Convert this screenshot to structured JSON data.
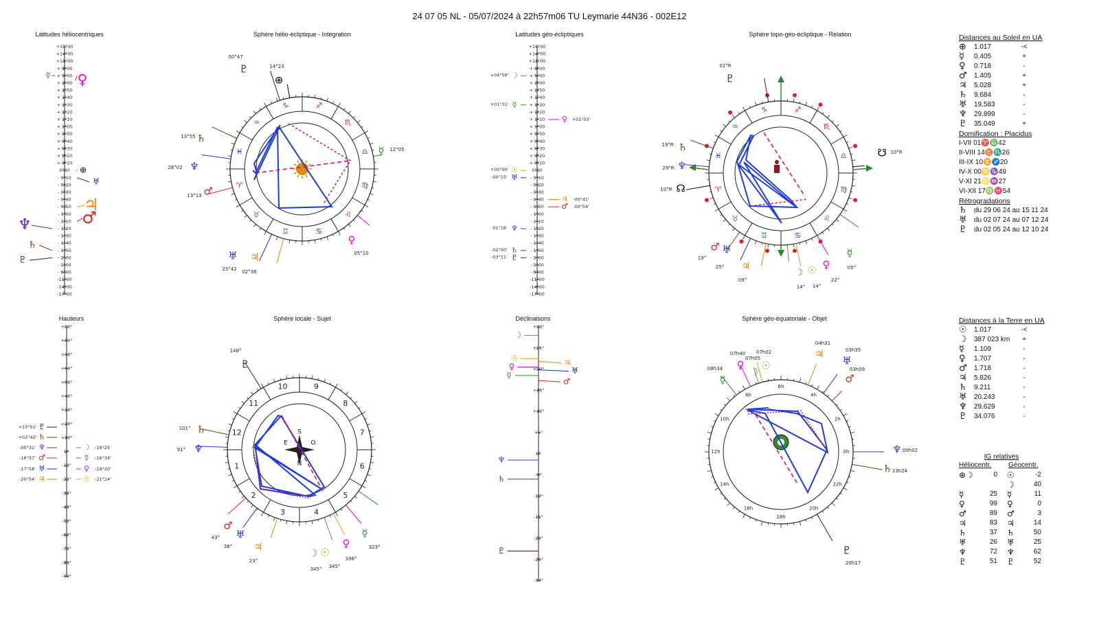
{
  "header": {
    "title": "24 07 05 NL   -  05/07/2024 à 22h57m06 TU  Leymarie  44N36 - 002E12"
  },
  "panels": {
    "p1": "Latitudes héliocentriques",
    "p2": "Sphère hélio-écliptique - Intégration",
    "p3": "Latitudes géo-écliptiques",
    "p4": "Sphère topo-géo-écliptique - Relation",
    "p5": "Hauteurs",
    "p6": "Sphère locale - Sujet",
    "p7": "Déclinaisons",
    "p8": "Sphère géo-équatoriale - Objet"
  },
  "colors": {
    "sun": "#d4a017",
    "moon": "#7a7a7a",
    "mercury": "#2e8b2e",
    "venus": "#ee00ee",
    "mars": "#e02020",
    "jupiter": "#ff7f00",
    "saturn": "#7a3b10",
    "uranus": "#1a2bd6",
    "neptune": "#6020c0",
    "pluto": "#4b0d4b",
    "earth": "#000000",
    "aspect": "#1f3bdd",
    "dashed": "#e0105e",
    "arrow": "#2a8a2a"
  },
  "scales": {
    "helio_lat": [
      "+17°00",
      "+14°00",
      "+11°00",
      "+ 8°00",
      "+ 5°00",
      "+ 2°00",
      "+ 1°50",
      "+ 1°40",
      "+ 1°30",
      "+ 1°20",
      "+ 1°10",
      "+ 1°00",
      "+ 0°50",
      "+ 0°40",
      "+ 0°30",
      "+ 0°20",
      "+ 0°10",
      "0°00",
      "- 0°10",
      "- 0°20",
      "- 0°30",
      "- 0°40",
      "- 0°50",
      "- 1°00",
      "- 1°10",
      "- 1°20",
      "- 1°30",
      "- 1°40",
      "- 1°50",
      "- 2°00",
      "- 5°00",
      "- 8°00",
      "-11°00",
      "-14°00",
      "-17°00"
    ],
    "geo_lat": [
      "+17°00",
      "+14°00",
      "+11°00",
      "+ 8°00",
      "+ 5°00",
      "+ 2°00",
      "+ 1°50",
      "+ 1°40",
      "+ 1°30",
      "+ 1°20",
      "+ 1°10",
      "+ 1°00",
      "+ 0°50",
      "+ 0°40",
      "+ 0°30",
      "+ 0°20",
      "+ 0°10",
      "0°00",
      "- 0°10",
      "- 0°20",
      "- 0°30",
      "- 0°40",
      "- 0°50",
      "- 1°00",
      "- 1°10",
      "- 1°20",
      "- 1°30",
      "- 1°40",
      "- 1°50",
      "- 2°00",
      "- 5°00",
      "- 8°00",
      "-11°00",
      "-14°00",
      "-17°00"
    ],
    "heights": [
      "+90°",
      "+80°",
      "+70°",
      "+60°",
      "+50°",
      "+40°",
      "+30°",
      "+20°",
      "+10°",
      "0°",
      "-10°",
      "-20°",
      "-30°",
      "-40°",
      "-50°",
      "-60°",
      "-70°",
      "-80°",
      "-90°"
    ],
    "declinations": [
      "+30°",
      "+25°",
      "+20°",
      "+15°",
      "+10°",
      "+5°",
      "0°",
      "-5°",
      "-10°",
      "-15°",
      "-20°",
      "-25°",
      "-30°"
    ]
  },
  "helio_lat_points": [
    {
      "glyph": "☿",
      "color": "#2e8b2e",
      "tick": 4,
      "label": ""
    },
    {
      "glyph": "♀",
      "color": "#ee00ee",
      "tick": 4,
      "label": ""
    },
    {
      "glyph": "⊕",
      "color": "#000000",
      "tick": 17,
      "label": ""
    },
    {
      "glyph": "♅",
      "color": "#1a2bd6",
      "tick": 18,
      "label": ""
    },
    {
      "glyph": "♃",
      "color": "#ff7f00",
      "tick": 22,
      "label": ""
    },
    {
      "glyph": "♂",
      "color": "#e02020",
      "tick": 24,
      "label": ""
    },
    {
      "glyph": "♆",
      "color": "#6020c0",
      "tick": 25,
      "label": ""
    },
    {
      "glyph": "♄",
      "color": "#7a3b10",
      "tick": 28,
      "label": ""
    },
    {
      "glyph": "♇",
      "color": "#4b0d4b",
      "tick": 29,
      "label": ""
    }
  ],
  "geo_lat_points": [
    {
      "glyph": "☽",
      "color": "#7a7a7a",
      "side": "left",
      "label": "+04°59'",
      "tick": 4
    },
    {
      "glyph": "☿",
      "color": "#2e8b2e",
      "side": "left",
      "label": "+01°31'",
      "tick": 8
    },
    {
      "glyph": "♀",
      "color": "#ee00ee",
      "side": "right",
      "label": "+01°03'",
      "tick": 10
    },
    {
      "glyph": "☉",
      "color": "#d4a017",
      "side": "left",
      "label": "+00°00'",
      "tick": 17
    },
    {
      "glyph": "♅",
      "color": "#1a2bd6",
      "side": "left",
      "label": "-00°15'",
      "tick": 18
    },
    {
      "glyph": "♃",
      "color": "#ff7f00",
      "side": "right",
      "label": "-00°41'",
      "tick": 21
    },
    {
      "glyph": "♂",
      "color": "#e02020",
      "side": "right",
      "label": "-00°54'",
      "tick": 22
    },
    {
      "glyph": "♆",
      "color": "#6020c0",
      "side": "left",
      "label": "-01°16'",
      "tick": 25
    },
    {
      "glyph": "♄",
      "color": "#7a3b10",
      "side": "left",
      "label": "-02°00'",
      "tick": 28
    },
    {
      "glyph": "♇",
      "color": "#4b0d4b",
      "side": "left",
      "label": "-03°11'",
      "tick": 29
    }
  ],
  "height_points": [
    {
      "glyph": "♇",
      "color": "#4b0d4b",
      "side": "left",
      "label": "+15°51'"
    },
    {
      "glyph": "♄",
      "color": "#7a3b10",
      "side": "left",
      "label": "+02°42'"
    },
    {
      "glyph": "♆",
      "color": "#6020c0",
      "side": "left",
      "label": "-00°31'"
    },
    {
      "glyph": "♂",
      "color": "#e02020",
      "side": "left",
      "label": "-16°57'"
    },
    {
      "glyph": "♅",
      "color": "#1a2bd6",
      "side": "left",
      "label": "-17°58'"
    },
    {
      "glyph": "♃",
      "color": "#ff7f00",
      "side": "left",
      "label": "-20°54'"
    },
    {
      "glyph": "☽",
      "color": "#7a7a7a",
      "side": "right",
      "label": "-16°25'"
    },
    {
      "glyph": "☿",
      "color": "#2e8b2e",
      "side": "right",
      "label": "-16°34'"
    },
    {
      "glyph": "♀",
      "color": "#ee00ee",
      "side": "right",
      "label": "-19°20'"
    },
    {
      "glyph": "☉",
      "color": "#d4a017",
      "side": "right",
      "label": "-21°24'"
    }
  ],
  "zodiac": [
    "♈",
    "♉",
    "♊",
    "♋",
    "♌",
    "♍",
    "♎",
    "♏",
    "♐",
    "♑",
    "♒",
    "♓"
  ],
  "houses": [
    "1",
    "2",
    "3",
    "4",
    "5",
    "6",
    "7",
    "8",
    "9",
    "10",
    "11",
    "12"
  ],
  "hours": [
    "0h",
    "2h",
    "4h",
    "6h",
    "8h",
    "10h",
    "12h",
    "14h",
    "16h",
    "18h",
    "20h",
    "22h"
  ],
  "helio_wheel_labels": [
    {
      "glyph": "♇",
      "color": "#4b0d4b",
      "text": "00°47"
    },
    {
      "glyph": "⊕",
      "color": "#000000",
      "text": "14°23"
    },
    {
      "glyph": "♄",
      "color": "#7a3b10",
      "text": "13°55"
    },
    {
      "glyph": "♆",
      "color": "#6020c0",
      "text": "28°02"
    },
    {
      "glyph": "♂",
      "color": "#e02020",
      "text": "13°13"
    },
    {
      "glyph": "☿",
      "color": "#2e8b2e",
      "text": "12°05"
    },
    {
      "glyph": "♅",
      "color": "#1a2bd6",
      "text": "23°42"
    },
    {
      "glyph": "♃",
      "color": "#ff7f00",
      "text": "02°36"
    },
    {
      "glyph": "♀",
      "color": "#ee00ee",
      "text": "05°10"
    }
  ],
  "topo_wheel_labels": [
    {
      "glyph": "♇",
      "color": "#4b0d4b",
      "text": "01°R"
    },
    {
      "glyph": "♄",
      "color": "#7a3b10",
      "text": "19°R"
    },
    {
      "glyph": "♆",
      "color": "#6020c0",
      "text": "29°R"
    },
    {
      "glyph": "☊",
      "color": "#000000",
      "text": "10°R"
    },
    {
      "glyph": "☋",
      "color": "#000000",
      "text": "10°R"
    },
    {
      "glyph": "♂",
      "color": "#e02020",
      "text": "19°"
    },
    {
      "glyph": "♅",
      "color": "#1a2bd6",
      "text": "25°"
    },
    {
      "glyph": "♃",
      "color": "#ff7f00",
      "text": "09°"
    },
    {
      "glyph": "☽",
      "color": "#7a7a7a",
      "text": "14°"
    },
    {
      "glyph": "☉",
      "color": "#d4a017",
      "text": "14°"
    },
    {
      "glyph": "♀",
      "color": "#ee00ee",
      "text": "22°"
    },
    {
      "glyph": "☿",
      "color": "#2e8b2e",
      "text": "05°"
    }
  ],
  "local_wheel_labels": [
    {
      "glyph": "♇",
      "color": "#4b0d4b",
      "text": "148°"
    },
    {
      "glyph": "♄",
      "color": "#7a3b10",
      "text": "101°"
    },
    {
      "glyph": "♆",
      "color": "#6020c0",
      "text": "91°"
    },
    {
      "glyph": "♂",
      "color": "#e02020",
      "text": "43°"
    },
    {
      "glyph": "♅",
      "color": "#1a2bd6",
      "text": "36°"
    },
    {
      "glyph": "♃",
      "color": "#ff7f00",
      "text": "23°"
    },
    {
      "glyph": "☽",
      "color": "#7a7a7a",
      "text": "345°"
    },
    {
      "glyph": "☉",
      "color": "#d4a017",
      "text": "345°"
    },
    {
      "glyph": "♀",
      "color": "#ee00ee",
      "text": "336°"
    },
    {
      "glyph": "☿",
      "color": "#2e8b2e",
      "text": "323°"
    }
  ],
  "local_compass": {
    "s": "S",
    "n": "N",
    "e": "E",
    "o": "O"
  },
  "equat_wheel_labels": [
    {
      "glyph": "♃",
      "color": "#ff7f00",
      "text": "04h31"
    },
    {
      "glyph": "♅",
      "color": "#1a2bd6",
      "text": "03h35"
    },
    {
      "glyph": "♂",
      "color": "#e02020",
      "text": "03h09"
    },
    {
      "glyph": "☉",
      "color": "#d4a017",
      "text": "07h02"
    },
    {
      "glyph": "☽",
      "color": "#7a7a7a",
      "text": "07h05"
    },
    {
      "glyph": "♀",
      "color": "#ee00ee",
      "text": "07h40"
    },
    {
      "glyph": "☿",
      "color": "#2e8b2e",
      "text": "08h34"
    },
    {
      "glyph": "♆",
      "color": "#6020c0",
      "text": "00h02"
    },
    {
      "glyph": "♄",
      "color": "#7a3b10",
      "text": "23h24"
    },
    {
      "glyph": "♇",
      "color": "#4b0d4b",
      "text": "20h17"
    }
  ],
  "decl_points": [
    {
      "glyph": "☽",
      "color": "#7a7a7a",
      "side": "left",
      "deg": 28
    },
    {
      "glyph": "☉",
      "color": "#d4a017",
      "side": "left",
      "deg": 22.5
    },
    {
      "glyph": "♀",
      "color": "#ee00ee",
      "side": "left",
      "deg": 20.5
    },
    {
      "glyph": "☿",
      "color": "#2e8b2e",
      "side": "left",
      "deg": 18.5
    },
    {
      "glyph": "♃",
      "color": "#ff7f00",
      "side": "right",
      "deg": 21.5
    },
    {
      "glyph": "♅",
      "color": "#1a2bd6",
      "side": "right",
      "deg": 19.5
    },
    {
      "glyph": "♂",
      "color": "#e02020",
      "side": "right",
      "deg": 17
    },
    {
      "glyph": "♆",
      "color": "#6020c0",
      "side": "left",
      "deg": -1.5
    },
    {
      "glyph": "♄",
      "color": "#7a3b10",
      "side": "left",
      "deg": -6
    },
    {
      "glyph": "♇",
      "color": "#4b0d4b",
      "side": "left",
      "deg": -23
    }
  ],
  "sun_distances": {
    "title": "Distances au Soleil en UA",
    "rows": [
      {
        "glyph": "⊕",
        "value": "1.017",
        "sign": "-<"
      },
      {
        "glyph": "☿",
        "value": "0.405",
        "sign": "+"
      },
      {
        "glyph": "♀",
        "value": "0.718",
        "sign": "-"
      },
      {
        "glyph": "♂",
        "value": "1.405",
        "sign": "+"
      },
      {
        "glyph": "♃",
        "value": "5.028",
        "sign": "+"
      },
      {
        "glyph": "♄",
        "value": "9.684",
        "sign": "-"
      },
      {
        "glyph": "♅",
        "value": "19.583",
        "sign": "-"
      },
      {
        "glyph": "♆",
        "value": "29.899",
        "sign": "-"
      },
      {
        "glyph": "♇",
        "value": "35.049",
        "sign": "+"
      }
    ]
  },
  "domification": {
    "title": "Domification : Placidus",
    "rows": [
      "I-VII   01♈♎42",
      "II-VIII   14♉♏26",
      "III-IX   10♊♐20",
      "IV-X   00♋♑49",
      "V-XI   21♌♒27",
      "VI-XII   17♍♓54"
    ]
  },
  "retrogradations": {
    "title": "Rétrogradations",
    "rows": [
      {
        "glyph": "♄",
        "text": "du 29 06 24 au 15 11 24"
      },
      {
        "glyph": "♅",
        "text": "du 02 07 24 au 07 12 24"
      },
      {
        "glyph": "♇",
        "text": "du 02 05 24 au 12 10 24"
      }
    ]
  },
  "earth_distances": {
    "title": "Distances à la Terre en UA",
    "rows": [
      {
        "glyph": "☉",
        "value": "1.017",
        "sign": "-<"
      },
      {
        "glyph": "☽",
        "value": "387 023 km",
        "sign": "+"
      },
      {
        "glyph": "☿",
        "value": "1.109",
        "sign": "-"
      },
      {
        "glyph": "♀",
        "value": "1.707",
        "sign": "-"
      },
      {
        "glyph": "♂",
        "value": "1.718",
        "sign": "-"
      },
      {
        "glyph": "♃",
        "value": "5.826",
        "sign": "-"
      },
      {
        "glyph": "♄",
        "value": "9.211",
        "sign": "-"
      },
      {
        "glyph": "♅",
        "value": "20.243",
        "sign": "-"
      },
      {
        "glyph": "♆",
        "value": "29.629",
        "sign": "-"
      },
      {
        "glyph": "♇",
        "value": "34.076",
        "sign": "-"
      }
    ]
  },
  "ig_relatives": {
    "title": "IG relatives",
    "col1": "Héliocentr.",
    "col2": "Géocentr.",
    "rows": [
      {
        "g1": "⊕☽",
        "v1": "0",
        "g2": "☉",
        "v2": "-2"
      },
      {
        "g1": "",
        "v1": "",
        "g2": "☽",
        "v2": "40"
      },
      {
        "g1": "☿",
        "v1": "25",
        "g2": "☿",
        "v2": "11"
      },
      {
        "g1": "♀",
        "v1": "99",
        "g2": "♀",
        "v2": "0"
      },
      {
        "g1": "♂",
        "v1": "89",
        "g2": "♂",
        "v2": "3"
      },
      {
        "g1": "♃",
        "v1": "83",
        "g2": "♃",
        "v2": "14"
      },
      {
        "g1": "♄",
        "v1": "37",
        "g2": "♄",
        "v2": "50"
      },
      {
        "g1": "♅",
        "v1": "26",
        "g2": "♅",
        "v2": "25"
      },
      {
        "g1": "♆",
        "v1": "72",
        "g2": "♆",
        "v2": "62"
      },
      {
        "g1": "♇",
        "v1": "51",
        "g2": "♇",
        "v2": "52"
      }
    ]
  }
}
